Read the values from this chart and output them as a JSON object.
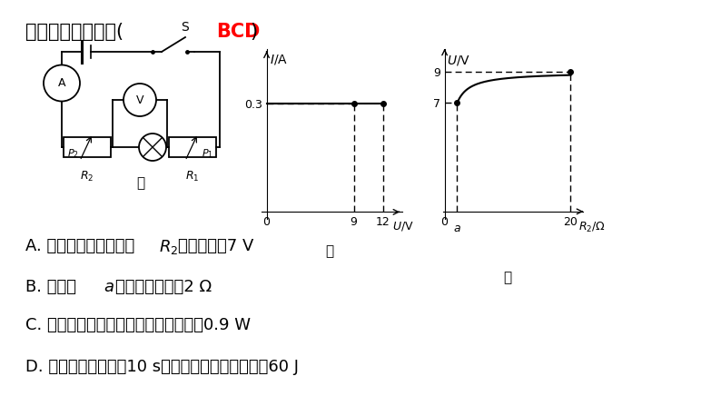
{
  "bg_color": "#FFFFFF",
  "title_black": "下列判断正确的是( ",
  "title_red": "BCD",
  "title_end": ")",
  "graph_left_name": "乙",
  "graph_right_name": "丙",
  "circuit_name": "甲",
  "opt_a": "A. 小灯泡正常发光时，",
  "opt_a2": "两端电压为7 V",
  "opt_b": "B. 图丙中",
  "opt_b2": "点对应的阵値为2 Ω",
  "opt_c": "C. 整个过程中小灯泡消耗的最小功率为0.9 W",
  "opt_d": "D. 整个过程中电路在10 s内能够消耗的最大电能为60 J"
}
